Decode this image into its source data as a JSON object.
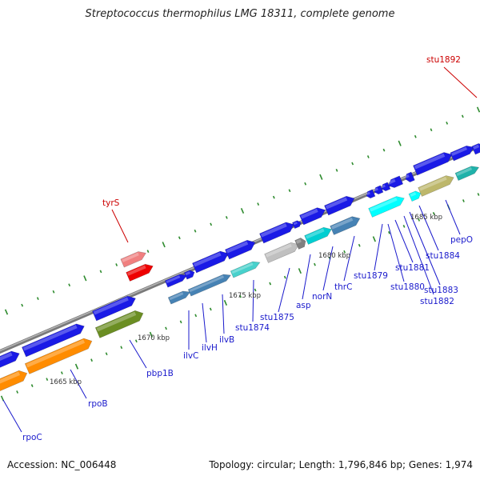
{
  "title": "Streptococcus thermophilus LMG 18311, complete genome",
  "footer": {
    "accession": "Accession: NC_006448",
    "summary": "Topology: circular; Length: 1,796,846 bp; Genes: 1,974"
  },
  "colors": {
    "backbone": "#8e8e8e",
    "tick": "#2e8b2e",
    "label_blue": "#1a1acc",
    "label_red": "#cc0000",
    "kbp_text": "#333333"
  },
  "scale_labels": [
    "1665 kbp",
    "1670 kbp",
    "1675 kbp",
    "1680 kbp",
    "1685 kbp"
  ],
  "genes": [
    {
      "name": "rpoC"
    },
    {
      "name": "rpoB"
    },
    {
      "name": "pbp1B"
    },
    {
      "name": "tyrS"
    },
    {
      "name": "ilvC"
    },
    {
      "name": "ilvH"
    },
    {
      "name": "ilvB"
    },
    {
      "name": "stu1874"
    },
    {
      "name": "stu1875"
    },
    {
      "name": "asp"
    },
    {
      "name": "norN"
    },
    {
      "name": "thrC"
    },
    {
      "name": "stu1879"
    },
    {
      "name": "stu1880"
    },
    {
      "name": "stu1881"
    },
    {
      "name": "stu1882"
    },
    {
      "name": "stu1883"
    },
    {
      "name": "stu1884"
    },
    {
      "name": "pepO"
    },
    {
      "name": "stu1892"
    }
  ]
}
